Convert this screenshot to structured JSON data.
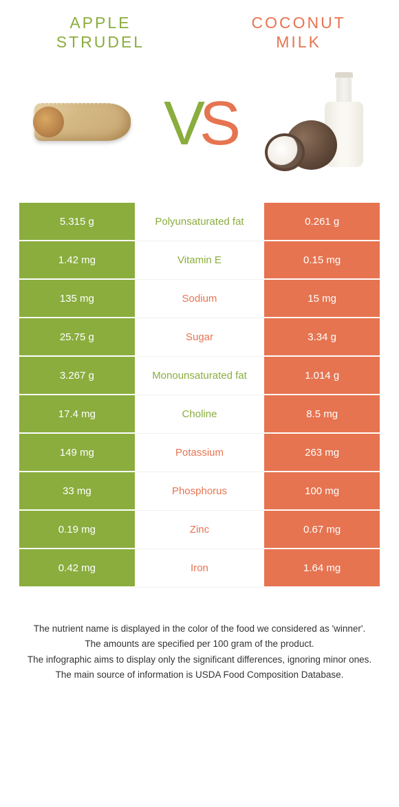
{
  "titles": {
    "left_line1": "APPLE",
    "left_line2": "STRUDEL",
    "right_line1": "COCONUT",
    "right_line2": "MILK"
  },
  "vs": {
    "v": "V",
    "s": "S"
  },
  "colors": {
    "left": "#8aad3e",
    "right": "#e67450",
    "background": "#ffffff",
    "text": "#333333"
  },
  "rows": [
    {
      "left": "5.315 g",
      "label": "Polyunsaturated fat",
      "right": "0.261 g",
      "winner": "left"
    },
    {
      "left": "1.42 mg",
      "label": "Vitamin E",
      "right": "0.15 mg",
      "winner": "left"
    },
    {
      "left": "135 mg",
      "label": "Sodium",
      "right": "15 mg",
      "winner": "right"
    },
    {
      "left": "25.75 g",
      "label": "Sugar",
      "right": "3.34 g",
      "winner": "right"
    },
    {
      "left": "3.267 g",
      "label": "Monounsaturated fat",
      "right": "1.014 g",
      "winner": "left"
    },
    {
      "left": "17.4 mg",
      "label": "Choline",
      "right": "8.5 mg",
      "winner": "left"
    },
    {
      "left": "149 mg",
      "label": "Potassium",
      "right": "263 mg",
      "winner": "right"
    },
    {
      "left": "33 mg",
      "label": "Phosphorus",
      "right": "100 mg",
      "winner": "right"
    },
    {
      "left": "0.19 mg",
      "label": "Zinc",
      "right": "0.67 mg",
      "winner": "right"
    },
    {
      "left": "0.42 mg",
      "label": "Iron",
      "right": "1.64 mg",
      "winner": "right"
    }
  ],
  "notes": [
    "The nutrient name is displayed in the color of the food we considered as 'winner'.",
    "The amounts are specified per 100 gram of the product.",
    "The infographic aims to display only the significant differences, ignoring minor ones.",
    "The main source of information is USDA Food Composition Database."
  ]
}
